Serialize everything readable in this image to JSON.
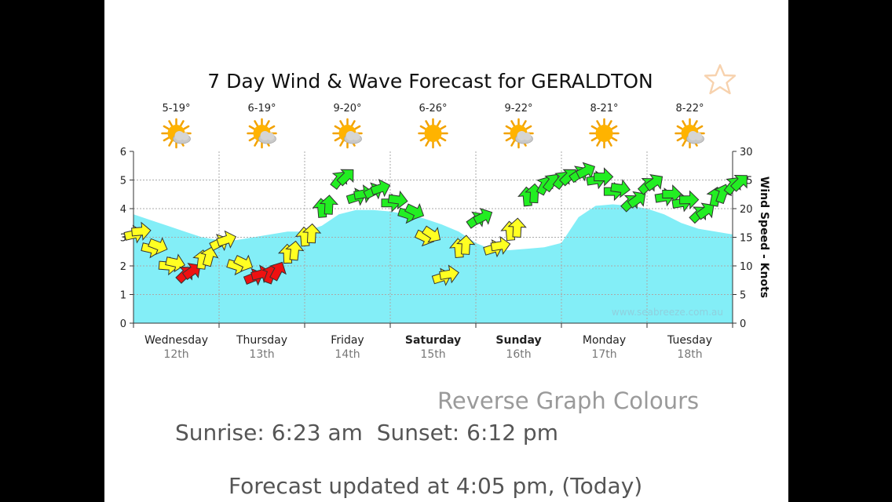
{
  "title": "7 Day Wind & Wave Forecast for GERALDTON",
  "favorite_icon": "star-icon",
  "reverse_label": "Reverse Graph Colours",
  "sunrise_label": "Sunrise:",
  "sunrise": "6:23 am",
  "sunset_label": "Sunset:",
  "sunset": "6:12 pm",
  "updated_label": "Forecast updated at 4:05 pm, (Today)",
  "watermark": "www.seabreeze.com.au",
  "colors": {
    "area": "#83eef7",
    "light_wind": "#ffff22",
    "fresh_wind": "#22ee22",
    "offshore": "#ee1111"
  },
  "chart_data": {
    "type": "area",
    "title": "7 Day Wind & Wave Forecast for GERALDTON",
    "ylabel_right": "Wind Speed - Knots",
    "ylim_left": [
      0,
      6
    ],
    "ylim_right": [
      0,
      30
    ],
    "yticks_left": [
      "0",
      "1",
      "2",
      "3",
      "4",
      "5",
      "6"
    ],
    "yticks_right": [
      "0",
      "5",
      "10",
      "15",
      "20",
      "25",
      "30"
    ],
    "grid": true,
    "days": [
      {
        "name": "Wednesday",
        "date": "12th",
        "bold": false,
        "temp": "5-19°",
        "weather": "partly-cloudy-icon"
      },
      {
        "name": "Thursday",
        "date": "13th",
        "bold": false,
        "temp": "6-19°",
        "weather": "partly-cloudy-icon"
      },
      {
        "name": "Friday",
        "date": "14th",
        "bold": false,
        "temp": "9-20°",
        "weather": "partly-cloudy-icon"
      },
      {
        "name": "Saturday",
        "date": "15th",
        "bold": true,
        "temp": "6-26°",
        "weather": "sunny-icon"
      },
      {
        "name": "Sunday",
        "date": "16th",
        "bold": true,
        "temp": "9-22°",
        "weather": "partly-cloudy-icon"
      },
      {
        "name": "Monday",
        "date": "17th",
        "bold": false,
        "temp": "8-21°",
        "weather": "sunny-icon"
      },
      {
        "name": "Tuesday",
        "date": "18th",
        "bold": false,
        "temp": "8-22°",
        "weather": "partly-cloudy-icon"
      }
    ],
    "wave_height": {
      "name": "Wave height",
      "x_days": [
        0,
        0.2,
        0.4,
        0.6,
        0.8,
        1.0,
        1.2,
        1.4,
        1.6,
        1.8,
        2.0,
        2.2,
        2.4,
        2.6,
        2.8,
        3.0,
        3.2,
        3.4,
        3.6,
        3.8,
        4.0,
        4.2,
        4.4,
        4.6,
        4.8,
        5.0,
        5.2,
        5.4,
        5.6,
        5.8,
        6.0,
        6.2,
        6.4,
        6.6,
        6.8,
        7.0
      ],
      "values": [
        3.8,
        3.6,
        3.4,
        3.2,
        3.0,
        2.9,
        2.9,
        3.0,
        3.1,
        3.2,
        3.2,
        3.4,
        3.8,
        3.95,
        3.95,
        3.9,
        3.8,
        3.65,
        3.45,
        3.2,
        2.8,
        2.55,
        2.55,
        2.6,
        2.65,
        2.8,
        3.7,
        4.1,
        4.15,
        4.1,
        4.0,
        3.8,
        3.5,
        3.3,
        3.2,
        3.1
      ]
    },
    "wind_speed": {
      "name": "Wind Speed - Knots",
      "x_days": [
        0,
        0.2,
        0.4,
        0.6,
        0.8,
        1.0,
        1.2,
        1.4,
        1.6,
        1.8,
        2.0,
        2.2,
        2.4,
        2.6,
        2.8,
        3.0,
        3.2,
        3.4,
        3.6,
        3.8,
        4.0,
        4.2,
        4.4,
        4.6,
        4.8,
        5.0,
        5.2,
        5.4,
        5.6,
        5.8,
        6.0,
        6.2,
        6.4,
        6.6,
        6.8,
        7.0
      ],
      "values": [
        15.5,
        13,
        10,
        8.5,
        11,
        14,
        10,
        8,
        8.5,
        12,
        15,
        20,
        25,
        22,
        23,
        21,
        19,
        15,
        8,
        13,
        18,
        13,
        16,
        22,
        24,
        25,
        26,
        25,
        23,
        21,
        24,
        22,
        21,
        19,
        22,
        24
      ]
    }
  }
}
